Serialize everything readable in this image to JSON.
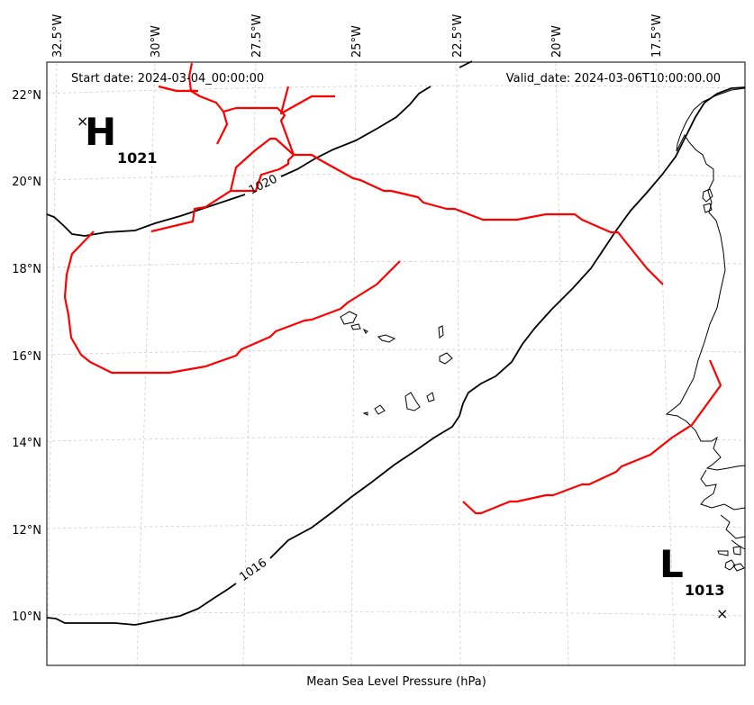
{
  "header": {
    "start_date": "Start date: 2024-03-04_00:00:00",
    "valid_date": "Valid_date: 2024-03-06T10:00:00.00"
  },
  "footer": {
    "caption": "Mean Sea Level Pressure (hPa)"
  },
  "axes": {
    "lon_labels": [
      "32.5°W",
      "30°W",
      "27.5°W",
      "25°W",
      "22.5°W",
      "20°W",
      "17.5°W"
    ],
    "lat_labels": [
      "22°N",
      "20°N",
      "18°N",
      "16°N",
      "14°N",
      "12°N",
      "10°N"
    ]
  },
  "high": {
    "letter": "H",
    "value": "1021",
    "marker": "×"
  },
  "low": {
    "letter": "L",
    "value": "1013",
    "marker": "×"
  },
  "isobars": [
    {
      "value": "1020"
    },
    {
      "value": "1016"
    }
  ],
  "colors": {
    "isobar": "#000000",
    "front": "#ff0000",
    "grid": "#cccccc",
    "coast": "#000000"
  }
}
